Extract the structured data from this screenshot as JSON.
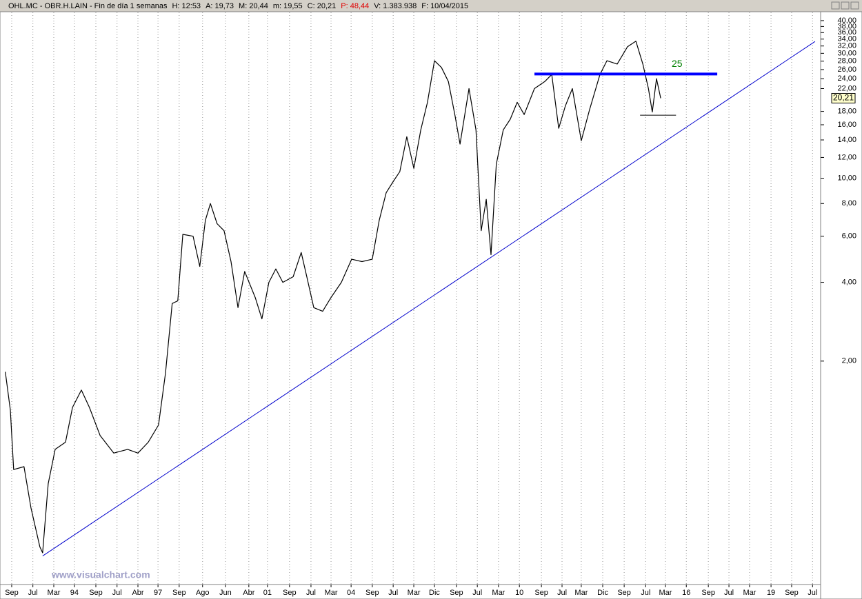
{
  "chart_data": {
    "type": "line",
    "header": [
      {
        "text": "OHL.MC - OBR.H.LAIN - Fin de día 1 semanas",
        "color": "#000000"
      },
      {
        "text": "H: 12:53",
        "color": "#000000"
      },
      {
        "text": "A: 19,73",
        "color": "#000000"
      },
      {
        "text": "M: 20,44",
        "color": "#000000"
      },
      {
        "text": "m: 19,55",
        "color": "#000000"
      },
      {
        "text": "C: 20,21",
        "color": "#000000"
      },
      {
        "text": "P: 48,44",
        "color": "#e00000"
      },
      {
        "text": "V: 1.383.938",
        "color": "#000000"
      },
      {
        "text": "F: 10/04/2015",
        "color": "#000000"
      }
    ],
    "watermark": "www.visualchart.com",
    "log_y": true,
    "grid_x": true,
    "xlim": [
      1991.33,
      2020.78
    ],
    "ylim": [
      0.28,
      43
    ],
    "series": [
      {
        "color": "#000000",
        "x": [
          1991.52,
          1991.7,
          1991.82,
          1992.19,
          1992.44,
          1992.76,
          1992.86,
          1993.06,
          1993.31,
          1993.68,
          1993.93,
          1994.25,
          1994.54,
          1994.92,
          1995.41,
          1995.91,
          1996.28,
          1996.65,
          1997.02,
          1997.27,
          1997.51,
          1997.71,
          1997.89,
          1998.26,
          1998.5,
          1998.7,
          1998.88,
          1999.12,
          1999.37,
          1999.62,
          1999.87,
          2000.11,
          2000.49,
          2000.73,
          2000.98,
          2001.23,
          2001.48,
          2001.85,
          2002.14,
          2002.34,
          2002.59,
          2002.91,
          2003.21,
          2003.58,
          2003.95,
          2004.32,
          2004.69,
          2004.94,
          2005.19,
          2005.44,
          2005.68,
          2005.93,
          2006.18,
          2006.43,
          2006.67,
          2006.92,
          2007.17,
          2007.42,
          2007.66,
          2007.84,
          2008.16,
          2008.41,
          2008.6,
          2008.78,
          2008.95,
          2009.14,
          2009.39,
          2009.64,
          2009.89,
          2010.14,
          2010.51,
          2010.88,
          2011.13,
          2011.38,
          2011.62,
          2011.87,
          2012.19,
          2012.49,
          2012.86,
          2013.11,
          2013.48,
          2013.85,
          2014.15,
          2014.4,
          2014.6,
          2014.74,
          2014.89,
          2015.04
        ],
        "values": [
          1.82,
          1.3,
          0.77,
          0.79,
          0.55,
          0.39,
          0.37,
          0.68,
          0.92,
          0.98,
          1.33,
          1.55,
          1.33,
          1.04,
          0.89,
          0.92,
          0.89,
          0.98,
          1.14,
          1.8,
          3.32,
          3.4,
          6.1,
          6.0,
          4.6,
          6.9,
          8.0,
          6.7,
          6.3,
          4.8,
          3.2,
          4.4,
          3.5,
          2.9,
          4.0,
          4.5,
          4.0,
          4.2,
          5.2,
          4.2,
          3.2,
          3.1,
          3.5,
          4.0,
          4.9,
          4.8,
          4.9,
          6.9,
          8.8,
          9.7,
          10.6,
          14.4,
          10.9,
          15.3,
          19.5,
          28.1,
          26.5,
          23.4,
          17.3,
          13.5,
          22.0,
          15.3,
          6.3,
          8.3,
          5.1,
          11.3,
          15.3,
          16.8,
          19.5,
          17.5,
          22.0,
          23.4,
          24.9,
          15.5,
          18.9,
          22.0,
          13.9,
          18.3,
          24.9,
          28.1,
          27.3,
          31.8,
          33.4,
          27.3,
          22.0,
          17.9,
          24.0,
          20.21
        ]
      }
    ],
    "resistance": {
      "x": [
        2010.51,
        2017.07
      ],
      "y": 25,
      "label": "25",
      "color": "#0000ff",
      "label_color": "#008000"
    },
    "trendline": {
      "x": [
        1992.86,
        2020.58
      ],
      "y": [
        0.36,
        33.3
      ],
      "color": "#0000cc"
    },
    "support": {
      "x": [
        2014.3,
        2015.59
      ],
      "y": 17.4,
      "color": "#000000"
    },
    "last_price": {
      "value": 20.21,
      "label": "20,21"
    },
    "yticks": [
      {
        "value": 2,
        "label": "2,00"
      },
      {
        "value": 4,
        "label": "4,00"
      },
      {
        "value": 6,
        "label": "6,00"
      },
      {
        "value": 8,
        "label": "8,00"
      },
      {
        "value": 10,
        "label": "10,00"
      },
      {
        "value": 12,
        "label": "12,00"
      },
      {
        "value": 14,
        "label": "14,00"
      },
      {
        "value": 16,
        "label": "16,00"
      },
      {
        "value": 18,
        "label": "18,00"
      },
      {
        "value": 22,
        "label": "22,00"
      },
      {
        "value": 24,
        "label": "24,00"
      },
      {
        "value": 26,
        "label": "26,00"
      },
      {
        "value": 28,
        "label": "28,00"
      },
      {
        "value": 30,
        "label": "30,00"
      },
      {
        "value": 32,
        "label": "32,00"
      },
      {
        "value": 34,
        "label": "34,00"
      },
      {
        "value": 36,
        "label": "36,00"
      },
      {
        "value": 38,
        "label": "38,00"
      },
      {
        "value": 40,
        "label": "40,00"
      }
    ],
    "xticks": [
      {
        "value": 1991.75,
        "label": "Sep"
      },
      {
        "value": 1992.51,
        "label": "Jul"
      },
      {
        "value": 1993.26,
        "label": "Mar"
      },
      {
        "value": 1994.0,
        "label": "94"
      },
      {
        "value": 1994.77,
        "label": "Sep"
      },
      {
        "value": 1995.53,
        "label": "Jul"
      },
      {
        "value": 1996.28,
        "label": "Abr"
      },
      {
        "value": 1997.0,
        "label": "97"
      },
      {
        "value": 1997.76,
        "label": "Sep"
      },
      {
        "value": 1998.6,
        "label": "Ago"
      },
      {
        "value": 1999.42,
        "label": "Jun"
      },
      {
        "value": 2000.26,
        "label": "Abr"
      },
      {
        "value": 2000.93,
        "label": "01"
      },
      {
        "value": 2001.72,
        "label": "Sep"
      },
      {
        "value": 2002.49,
        "label": "Jul"
      },
      {
        "value": 2003.21,
        "label": "Mar"
      },
      {
        "value": 2003.93,
        "label": "04"
      },
      {
        "value": 2004.69,
        "label": "Sep"
      },
      {
        "value": 2005.44,
        "label": "Jul"
      },
      {
        "value": 2006.18,
        "label": "Mar"
      },
      {
        "value": 2006.92,
        "label": "Dic"
      },
      {
        "value": 2007.71,
        "label": "Sep"
      },
      {
        "value": 2008.46,
        "label": "Jul"
      },
      {
        "value": 2009.22,
        "label": "Mar"
      },
      {
        "value": 2009.97,
        "label": "10"
      },
      {
        "value": 2010.76,
        "label": "Sep"
      },
      {
        "value": 2011.5,
        "label": "Jul"
      },
      {
        "value": 2012.19,
        "label": "Mar"
      },
      {
        "value": 2012.96,
        "label": "Dic"
      },
      {
        "value": 2013.73,
        "label": "Sep"
      },
      {
        "value": 2014.5,
        "label": "Jul"
      },
      {
        "value": 2015.21,
        "label": "Mar"
      },
      {
        "value": 2015.96,
        "label": "16"
      },
      {
        "value": 2016.75,
        "label": "Sep"
      },
      {
        "value": 2017.49,
        "label": "Jul"
      },
      {
        "value": 2018.23,
        "label": "Mar"
      },
      {
        "value": 2019.0,
        "label": "19"
      },
      {
        "value": 2019.74,
        "label": "Sep"
      },
      {
        "value": 2020.49,
        "label": "Jul"
      }
    ]
  }
}
